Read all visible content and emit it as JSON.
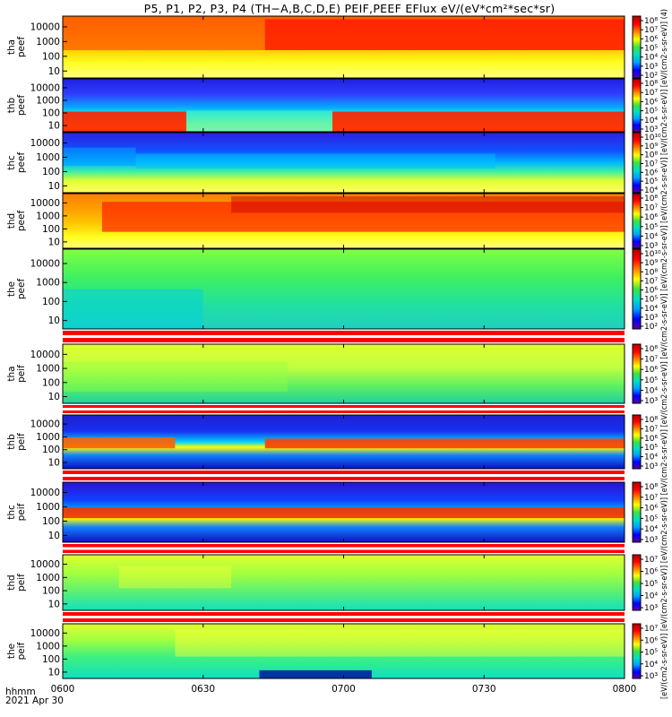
{
  "title": "P5, P1, P2, P3, P4 (TH−A,B,C,D,E) PEIF,PEEF EFlux eV/(eV*cm²*sec*sr)",
  "footer": {
    "line1": "hhmm",
    "line2": "2021 Apr 30"
  },
  "colorbar_side_label": "[eV/(cm2-s-sr-eV)] [eV/(cm2-s-sr-eV)] [eV/(cm2-s-sr-eV)] [eV/(cm2-s-sr-eV)] [eV/(cm2-s-sr-eV)] [eV/(cm2-s-sr-eV)] [eV/(cm2-s-sr-eV)] [eV/(cm2-s-sr-eV)] [eV/(cm2-s-sr-eV)] [eV/(cm2-s-sr-eV)] (4)",
  "chart_data": {
    "type": "heatmap",
    "x_axis": {
      "range": [
        "0600",
        "0800"
      ],
      "ticks": [
        "0600",
        "0630",
        "0700",
        "0730",
        "0800"
      ]
    },
    "y_scale": "log",
    "y_ticks": [
      "10",
      "100",
      "1000",
      "10000"
    ],
    "panels": [
      {
        "name": "tha peef",
        "line1": "tha",
        "line2": "peef",
        "cbar_ticks": [
          "10²",
          "10³",
          "10⁴",
          "10⁵",
          "10⁶",
          "10⁷",
          "10⁸"
        ],
        "red_stripe": false
      },
      {
        "name": "thb peef",
        "line1": "thb",
        "line2": "peef",
        "cbar_ticks": [
          "10³",
          "10⁴",
          "10⁵",
          "10⁶",
          "10⁷",
          "10⁸"
        ],
        "red_stripe": false
      },
      {
        "name": "thc peef",
        "line1": "thc",
        "line2": "peef",
        "cbar_ticks": [
          "10⁴",
          "10⁵",
          "10⁶",
          "10⁷",
          "10⁸",
          "10⁹",
          "10¹⁰"
        ],
        "red_stripe": false
      },
      {
        "name": "thd peef",
        "line1": "thd",
        "line2": "peef",
        "cbar_ticks": [
          "10³",
          "10⁴",
          "10⁵",
          "10⁶",
          "10⁷",
          "10⁸"
        ],
        "red_stripe": false
      },
      {
        "name": "the peef",
        "line1": "the",
        "line2": "peef",
        "cbar_ticks": [
          "10²",
          "10³",
          "10⁴",
          "10⁵",
          "10⁶",
          "10⁷",
          "10⁸",
          "10⁹",
          "10¹⁰"
        ],
        "red_stripe": false
      },
      {
        "name": "tha peif",
        "line1": "tha",
        "line2": "peif",
        "cbar_ticks": [
          "10³",
          "10⁴",
          "10⁵",
          "10⁶",
          "10⁷",
          "10⁸"
        ],
        "red_stripe": true
      },
      {
        "name": "thb peif",
        "line1": "thb",
        "line2": "peif",
        "cbar_ticks": [
          "10³",
          "10⁴",
          "10⁵",
          "10⁶",
          "10⁷",
          "10⁸"
        ],
        "red_stripe": true
      },
      {
        "name": "thc peif",
        "line1": "thc",
        "line2": "peif",
        "cbar_ticks": [
          "10³",
          "10⁴",
          "10⁵",
          "10⁶",
          "10⁷",
          "10⁸"
        ],
        "red_stripe": true
      },
      {
        "name": "thd peif",
        "line1": "thd",
        "line2": "peif",
        "cbar_ticks": [
          "10³",
          "10⁴",
          "10⁵",
          "10⁶",
          "10⁷"
        ],
        "red_stripe": true
      },
      {
        "name": "the peif",
        "line1": "the",
        "line2": "peif",
        "cbar_ticks": [
          "10³",
          "10⁴",
          "10⁵",
          "10⁶",
          "10⁷"
        ],
        "red_stripe": true
      }
    ],
    "colorscale": [
      "#5a00a0",
      "#0000ff",
      "#00a0ff",
      "#00e0c0",
      "#40e040",
      "#ffff00",
      "#ff8000",
      "#ff0000",
      "#b00000"
    ]
  }
}
